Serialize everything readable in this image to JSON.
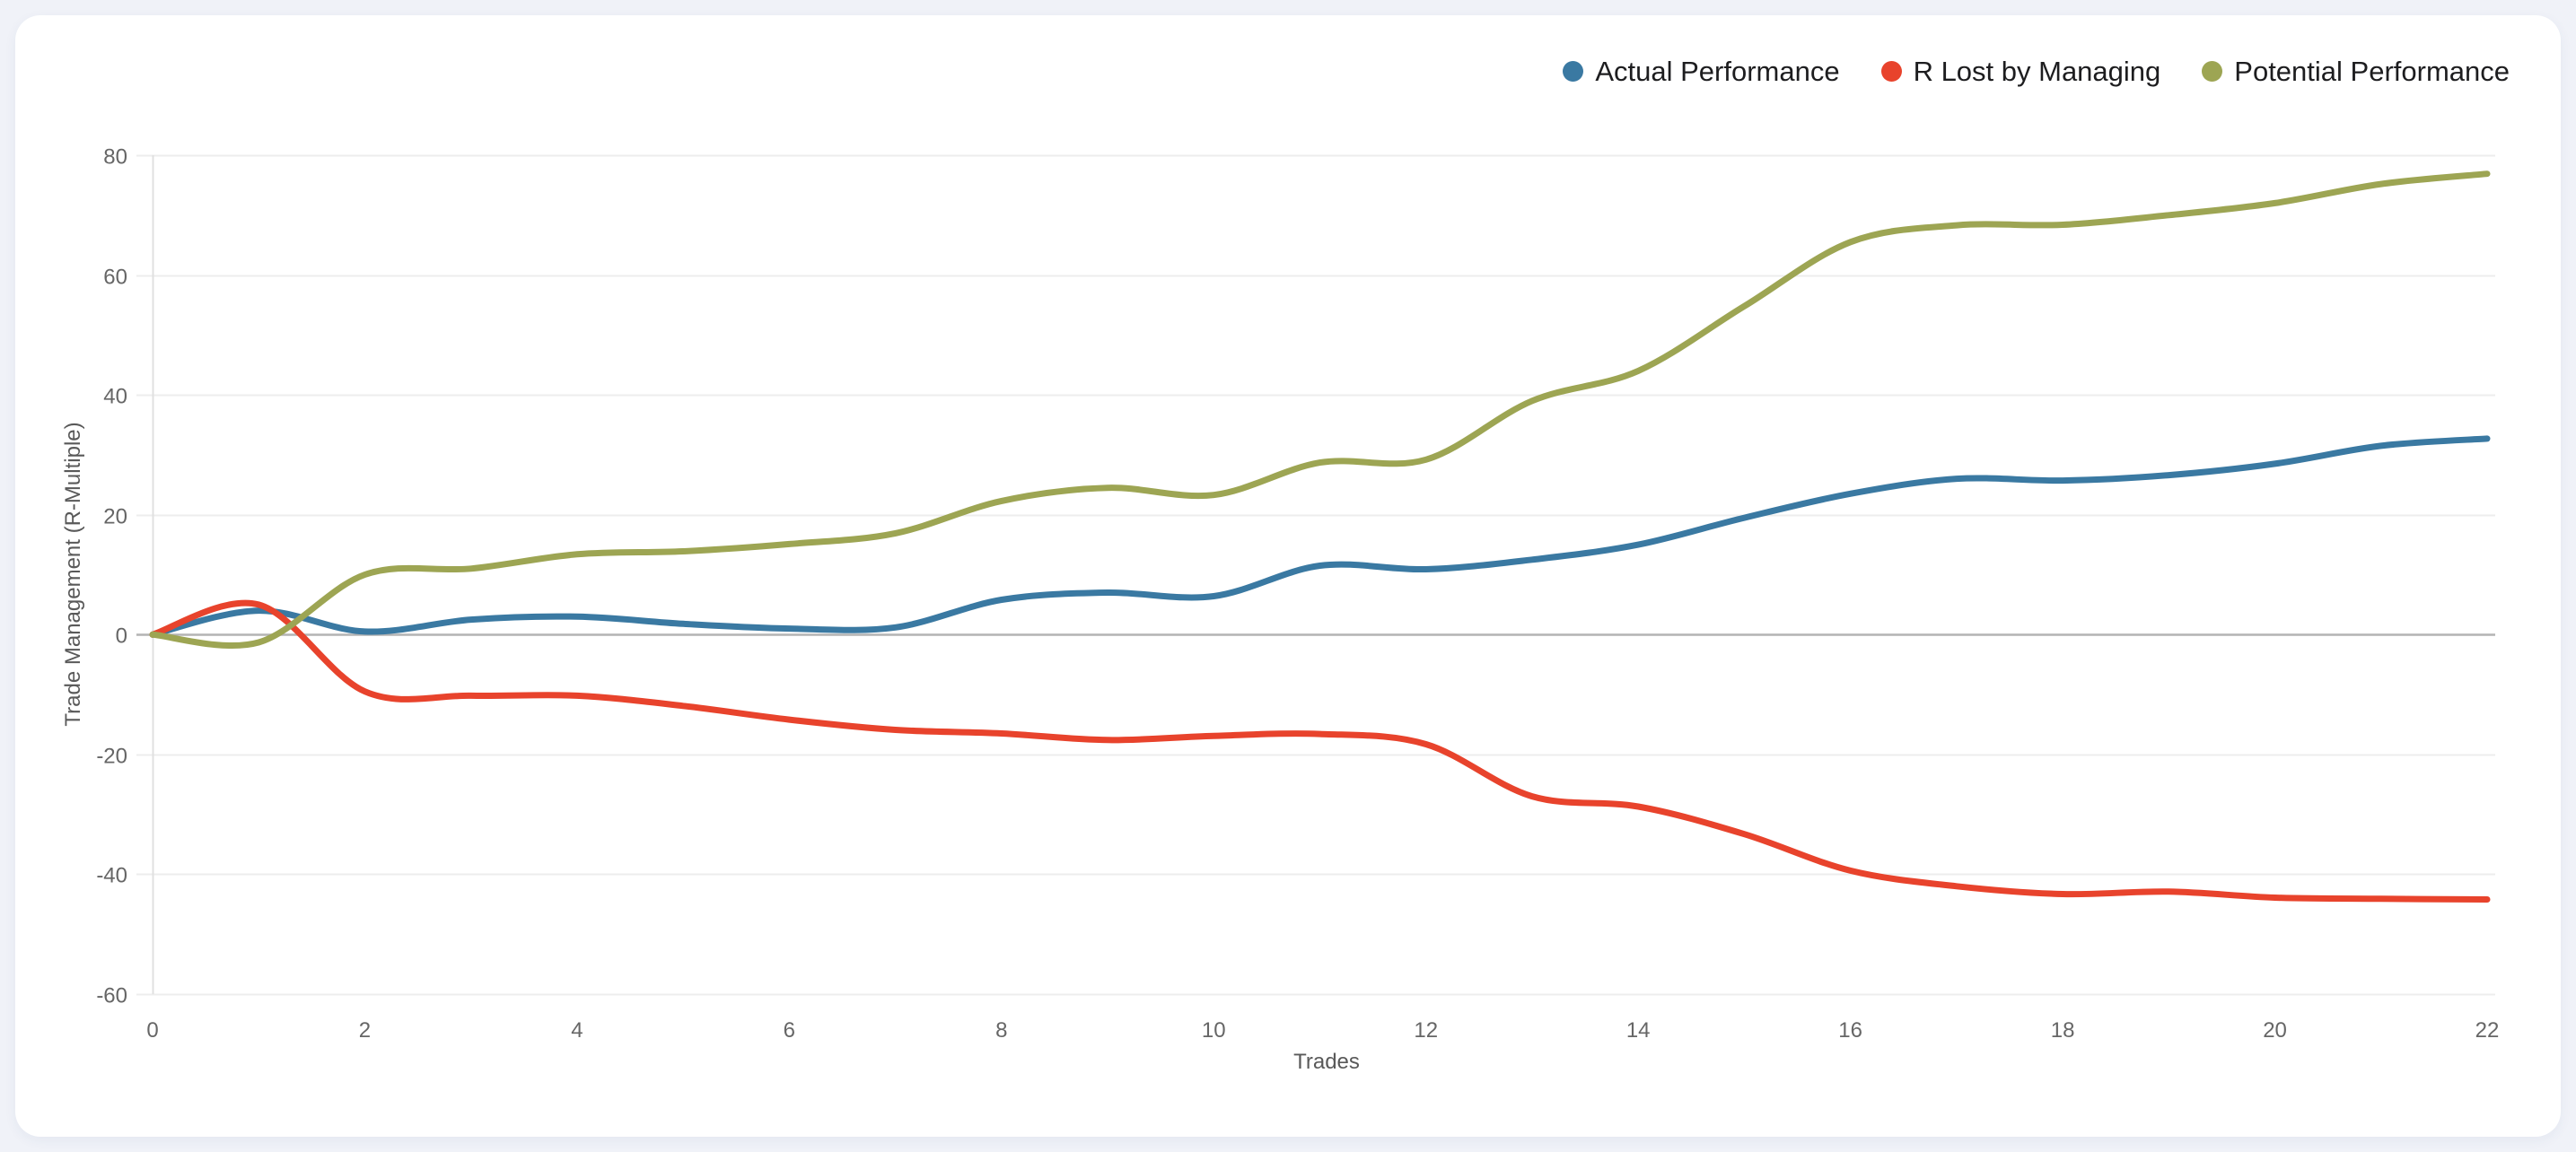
{
  "page": {
    "background_color": "#f0f2f8",
    "card_color": "#ffffff"
  },
  "chart_data": {
    "type": "line",
    "title": "",
    "xlabel": "Trades",
    "ylabel": "Trade Management (R-Multiple)",
    "xlim": [
      0,
      22
    ],
    "ylim": [
      -60,
      80
    ],
    "xticks": [
      0,
      2,
      4,
      6,
      8,
      10,
      12,
      14,
      16,
      18,
      20,
      22
    ],
    "yticks": [
      -60,
      -40,
      -20,
      0,
      20,
      40,
      60,
      80
    ],
    "grid": true,
    "legend_position": "top-right",
    "x": [
      0,
      1,
      2,
      3,
      4,
      5,
      6,
      7,
      8,
      9,
      10,
      11,
      12,
      13,
      14,
      15,
      16,
      17,
      18,
      19,
      20,
      21,
      22
    ],
    "series": [
      {
        "name": "Actual Performance",
        "color": "#3a79a2",
        "values": [
          0,
          4,
          0.5,
          2.5,
          3,
          1.8,
          1,
          1.2,
          5.8,
          7,
          6.4,
          11.5,
          10.9,
          12.5,
          15,
          19.5,
          23.5,
          26,
          25.7,
          26.6,
          28.5,
          31.5,
          32.7
        ]
      },
      {
        "name": "R Lost by Managing",
        "color": "#e8432c",
        "values": [
          0,
          5,
          -9.5,
          -10.2,
          -10.2,
          -11.9,
          -14.2,
          -15.9,
          -16.5,
          -17.6,
          -16.9,
          -16.6,
          -18.3,
          -27,
          -28.7,
          -33.3,
          -39.4,
          -42,
          -43.3,
          -42.9,
          -43.9,
          -44.1,
          -44.2
        ]
      },
      {
        "name": "Potential Performance",
        "color": "#9da553",
        "values": [
          0,
          -1.3,
          10,
          11,
          13.4,
          13.9,
          15.1,
          16.9,
          22.3,
          24.5,
          23.3,
          28.7,
          29.2,
          39,
          44,
          54.8,
          65.5,
          68.3,
          68.4,
          70,
          72,
          75.2,
          76.9
        ]
      }
    ]
  }
}
